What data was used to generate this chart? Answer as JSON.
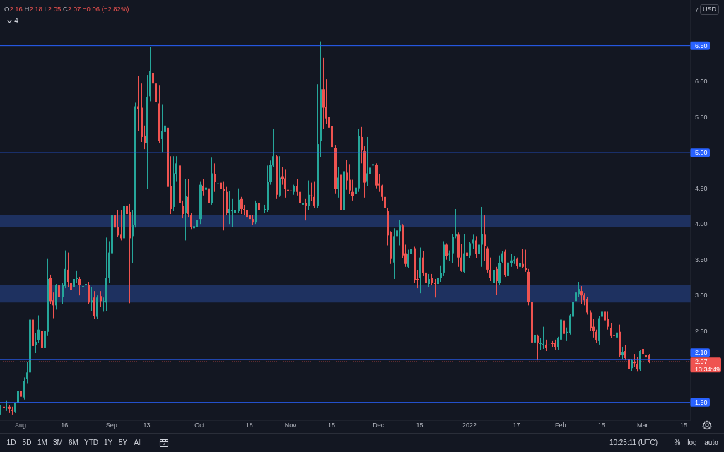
{
  "chart_data": {
    "type": "candlestick",
    "title": "O2.16 H2.18 L2.05 C2.07 −0.06 (−2.82%)",
    "ylabel": "USD",
    "x": [
      "2021-07-25",
      "2021-07-26",
      "2021-07-27",
      "2021-07-28",
      "2021-07-29",
      "2021-07-30",
      "2021-07-31",
      "2021-08-01",
      "2021-08-02",
      "2021-08-03",
      "2021-08-04",
      "2021-08-05",
      "2021-08-06",
      "2021-08-07",
      "2021-08-08",
      "2021-08-09",
      "2021-08-10",
      "2021-08-11",
      "2021-08-12",
      "2021-08-13",
      "2021-08-14",
      "2021-08-15",
      "2021-08-16",
      "2021-08-17",
      "2021-08-18",
      "2021-08-19",
      "2021-08-20",
      "2021-08-21",
      "2021-08-22",
      "2021-08-23",
      "2021-08-24",
      "2021-08-25",
      "2021-08-26",
      "2021-08-27",
      "2021-08-28",
      "2021-08-29",
      "2021-08-30",
      "2021-08-31",
      "2021-09-01",
      "2021-09-02",
      "2021-09-03",
      "2021-09-04",
      "2021-09-05",
      "2021-09-06",
      "2021-09-07",
      "2021-09-08",
      "2021-09-09",
      "2021-09-10",
      "2021-09-11",
      "2021-09-12",
      "2021-09-13",
      "2021-09-14",
      "2021-09-15",
      "2021-09-16",
      "2021-09-17",
      "2021-09-18",
      "2021-09-19",
      "2021-09-20",
      "2021-09-21",
      "2021-09-22",
      "2021-09-23",
      "2021-09-24",
      "2021-09-25",
      "2021-09-26",
      "2021-09-27",
      "2021-09-28",
      "2021-09-29",
      "2021-09-30",
      "2021-10-01",
      "2021-10-02",
      "2021-10-03",
      "2021-10-04",
      "2021-10-05",
      "2021-10-06",
      "2021-10-07",
      "2021-10-08",
      "2021-10-09",
      "2021-10-10",
      "2021-10-11",
      "2021-10-12",
      "2021-10-13",
      "2021-10-14",
      "2021-10-15",
      "2021-10-16",
      "2021-10-17",
      "2021-10-18",
      "2021-10-19",
      "2021-10-20",
      "2021-10-21",
      "2021-10-22",
      "2021-10-23",
      "2021-10-24",
      "2021-10-25",
      "2021-10-26",
      "2021-10-27",
      "2021-10-28",
      "2021-10-29",
      "2021-10-30",
      "2021-10-31",
      "2021-11-01",
      "2021-11-02",
      "2021-11-03",
      "2021-11-04",
      "2021-11-05",
      "2021-11-06",
      "2021-11-07",
      "2021-11-08",
      "2021-11-09",
      "2021-11-10",
      "2021-11-11",
      "2021-11-12",
      "2021-11-13",
      "2021-11-14",
      "2021-11-15",
      "2021-11-16",
      "2021-11-17",
      "2021-11-18",
      "2021-11-19",
      "2021-11-20",
      "2021-11-21",
      "2021-11-22",
      "2021-11-23",
      "2021-11-24",
      "2021-11-25",
      "2021-11-26",
      "2021-11-27",
      "2021-11-28",
      "2021-11-29",
      "2021-11-30",
      "2021-12-01",
      "2021-12-02",
      "2021-12-03",
      "2021-12-04",
      "2021-12-05",
      "2021-12-06",
      "2021-12-07",
      "2021-12-08",
      "2021-12-09",
      "2021-12-10",
      "2021-12-11",
      "2021-12-12",
      "2021-12-13",
      "2021-12-14",
      "2021-12-15",
      "2021-12-16",
      "2021-12-17",
      "2021-12-18",
      "2021-12-19",
      "2021-12-20",
      "2021-12-21",
      "2021-12-22",
      "2021-12-23",
      "2021-12-24",
      "2021-12-25",
      "2021-12-26",
      "2021-12-27",
      "2021-12-28",
      "2021-12-29",
      "2021-12-30",
      "2021-12-31",
      "2022-01-01",
      "2022-01-02",
      "2022-01-03",
      "2022-01-04",
      "2022-01-05",
      "2022-01-06",
      "2022-01-07",
      "2022-01-08",
      "2022-01-09",
      "2022-01-10",
      "2022-01-11",
      "2022-01-12",
      "2022-01-13",
      "2022-01-14",
      "2022-01-15",
      "2022-01-16",
      "2022-01-17",
      "2022-01-18",
      "2022-01-19",
      "2022-01-20",
      "2022-01-21",
      "2022-01-22",
      "2022-01-23",
      "2022-01-24",
      "2022-01-25",
      "2022-01-26",
      "2022-01-27",
      "2022-01-28",
      "2022-01-29",
      "2022-01-30",
      "2022-01-31",
      "2022-02-01",
      "2022-02-02",
      "2022-02-03",
      "2022-02-04",
      "2022-02-05",
      "2022-02-06",
      "2022-02-07",
      "2022-02-08",
      "2022-02-09",
      "2022-02-10",
      "2022-02-11",
      "2022-02-12",
      "2022-02-13",
      "2022-02-14",
      "2022-02-15",
      "2022-02-16",
      "2022-02-17",
      "2022-02-18",
      "2022-02-19",
      "2022-02-20",
      "2022-02-21",
      "2022-02-22",
      "2022-02-23",
      "2022-02-24",
      "2022-02-25",
      "2022-02-26",
      "2022-02-27",
      "2022-02-28",
      "2022-03-01",
      "2022-03-02",
      "2022-03-03"
    ],
    "ohlc": [
      [
        1.35,
        1.46,
        1.33,
        1.44
      ],
      [
        1.44,
        1.55,
        1.36,
        1.42
      ],
      [
        1.42,
        1.52,
        1.38,
        1.43
      ],
      [
        1.44,
        1.46,
        1.35,
        1.41
      ],
      [
        1.4,
        1.44,
        1.33,
        1.38
      ],
      [
        1.37,
        1.5,
        1.35,
        1.49
      ],
      [
        1.49,
        1.75,
        1.47,
        1.66
      ],
      [
        1.66,
        1.68,
        1.55,
        1.58
      ],
      [
        1.57,
        1.85,
        1.54,
        1.8
      ],
      [
        1.83,
        2.07,
        1.76,
        1.92
      ],
      [
        1.92,
        2.8,
        1.9,
        2.66
      ],
      [
        2.66,
        2.71,
        2.11,
        2.29
      ],
      [
        2.3,
        2.47,
        2.19,
        2.35
      ],
      [
        2.37,
        2.72,
        2.33,
        2.52
      ],
      [
        2.5,
        2.55,
        2.13,
        2.26
      ],
      [
        2.26,
        2.53,
        2.14,
        2.5
      ],
      [
        2.49,
        3.51,
        2.43,
        3.23
      ],
      [
        3.24,
        3.29,
        2.88,
        2.92
      ],
      [
        2.93,
        3.04,
        2.68,
        2.86
      ],
      [
        2.86,
        3.16,
        2.8,
        3.14
      ],
      [
        3.14,
        3.18,
        2.9,
        2.98
      ],
      [
        2.98,
        3.17,
        2.88,
        3.14
      ],
      [
        3.13,
        3.63,
        3.1,
        3.37
      ],
      [
        3.36,
        3.6,
        3.12,
        3.19
      ],
      [
        3.18,
        3.32,
        3.02,
        3.08
      ],
      [
        3.12,
        3.35,
        3.05,
        3.23
      ],
      [
        3.23,
        3.34,
        3.17,
        3.25
      ],
      [
        3.23,
        3.26,
        3.0,
        3.15
      ],
      [
        3.12,
        3.22,
        3.06,
        3.13
      ],
      [
        3.14,
        3.34,
        3.1,
        3.16
      ],
      [
        3.15,
        3.19,
        2.88,
        2.9
      ],
      [
        2.9,
        3.12,
        2.78,
        2.93
      ],
      [
        2.97,
        3.06,
        2.67,
        2.71
      ],
      [
        2.7,
        3.0,
        2.67,
        2.97
      ],
      [
        2.99,
        3.06,
        2.84,
        2.92
      ],
      [
        2.91,
        2.97,
        2.77,
        2.92
      ],
      [
        2.9,
        3.81,
        2.78,
        3.24
      ],
      [
        3.25,
        3.76,
        3.18,
        3.6
      ],
      [
        3.59,
        4.68,
        3.55,
        4.12
      ],
      [
        4.12,
        4.27,
        3.85,
        3.95
      ],
      [
        3.96,
        4.2,
        3.82,
        3.84
      ],
      [
        3.85,
        4.2,
        3.77,
        3.8
      ],
      [
        3.8,
        4.44,
        3.77,
        4.25
      ],
      [
        4.26,
        4.63,
        4.0,
        4.14
      ],
      [
        4.17,
        4.28,
        2.89,
        3.8
      ],
      [
        3.83,
        4.2,
        3.45,
        3.99
      ],
      [
        3.99,
        5.7,
        3.95,
        5.65
      ],
      [
        5.65,
        6.08,
        5.3,
        5.61
      ],
      [
        5.63,
        5.97,
        5.15,
        5.22
      ],
      [
        5.24,
        5.38,
        5.05,
        5.14
      ],
      [
        5.13,
        6.09,
        4.49,
        5.78
      ],
      [
        5.79,
        6.48,
        5.72,
        6.15
      ],
      [
        6.12,
        6.18,
        5.6,
        5.97
      ],
      [
        5.97,
        6.0,
        5.35,
        5.71
      ],
      [
        5.69,
        5.94,
        5.13,
        5.17
      ],
      [
        5.19,
        5.68,
        5.01,
        5.3
      ],
      [
        5.29,
        5.65,
        5.1,
        5.38
      ],
      [
        5.35,
        5.38,
        4.42,
        4.52
      ],
      [
        4.53,
        4.95,
        4.14,
        4.21
      ],
      [
        4.24,
        4.95,
        4.18,
        4.71
      ],
      [
        4.7,
        4.95,
        4.6,
        4.85
      ],
      [
        4.82,
        4.84,
        4.04,
        4.29
      ],
      [
        4.26,
        4.33,
        4.08,
        4.14
      ],
      [
        4.15,
        4.63,
        3.77,
        4.39
      ],
      [
        4.38,
        4.63,
        4.1,
        4.14
      ],
      [
        4.12,
        4.15,
        3.93,
        3.96
      ],
      [
        3.94,
        4.13,
        3.91,
        3.97
      ],
      [
        3.96,
        4.13,
        3.93,
        4.06
      ],
      [
        4.07,
        4.6,
        4.0,
        4.55
      ],
      [
        4.53,
        4.63,
        4.4,
        4.46
      ],
      [
        4.48,
        4.6,
        4.4,
        4.51
      ],
      [
        4.5,
        4.52,
        4.25,
        4.29
      ],
      [
        4.29,
        4.93,
        4.27,
        4.71
      ],
      [
        4.7,
        4.85,
        4.45,
        4.59
      ],
      [
        4.56,
        4.75,
        4.47,
        4.57
      ],
      [
        4.58,
        4.63,
        4.44,
        4.49
      ],
      [
        4.49,
        4.6,
        3.91,
        4.46
      ],
      [
        4.45,
        4.52,
        4.12,
        4.16
      ],
      [
        4.15,
        4.46,
        4.0,
        4.21
      ],
      [
        4.18,
        4.35,
        3.96,
        4.19
      ],
      [
        4.16,
        4.24,
        4.03,
        4.19
      ],
      [
        4.18,
        4.5,
        4.15,
        4.34
      ],
      [
        4.35,
        4.38,
        4.14,
        4.21
      ],
      [
        4.21,
        4.27,
        4.12,
        4.19
      ],
      [
        4.19,
        4.23,
        4.06,
        4.1
      ],
      [
        4.12,
        4.15,
        4.03,
        4.07
      ],
      [
        4.07,
        4.13,
        3.99,
        4.02
      ],
      [
        4.02,
        4.33,
        4.0,
        4.29
      ],
      [
        4.29,
        4.35,
        4.16,
        4.19
      ],
      [
        4.19,
        4.32,
        4.14,
        4.2
      ],
      [
        4.19,
        4.27,
        4.15,
        4.21
      ],
      [
        4.19,
        4.82,
        4.17,
        4.59
      ],
      [
        4.59,
        4.89,
        4.55,
        4.83
      ],
      [
        4.82,
        5.33,
        4.8,
        4.95
      ],
      [
        4.95,
        4.97,
        4.35,
        4.41
      ],
      [
        4.4,
        4.95,
        4.38,
        4.65
      ],
      [
        4.67,
        4.8,
        4.55,
        4.63
      ],
      [
        4.64,
        4.76,
        4.37,
        4.49
      ],
      [
        4.48,
        4.5,
        4.38,
        4.46
      ],
      [
        4.47,
        4.64,
        4.32,
        4.46
      ],
      [
        4.45,
        4.55,
        4.41,
        4.53
      ],
      [
        4.53,
        4.63,
        4.4,
        4.45
      ],
      [
        4.45,
        4.48,
        4.24,
        4.29
      ],
      [
        4.27,
        4.34,
        4.25,
        4.29
      ],
      [
        4.29,
        4.35,
        4.05,
        4.26
      ],
      [
        4.25,
        4.61,
        4.2,
        4.41
      ],
      [
        4.4,
        4.58,
        4.32,
        4.39
      ],
      [
        4.38,
        4.6,
        4.23,
        4.26
      ],
      [
        4.26,
        5.96,
        4.22,
        5.12
      ],
      [
        5.16,
        6.56,
        4.94,
        5.89
      ],
      [
        5.89,
        6.33,
        5.33,
        5.63
      ],
      [
        5.64,
        6.03,
        5.4,
        5.48
      ],
      [
        5.5,
        5.64,
        5.3,
        5.35
      ],
      [
        5.37,
        5.65,
        5.01,
        5.08
      ],
      [
        5.07,
        5.1,
        4.43,
        4.49
      ],
      [
        4.49,
        4.8,
        4.37,
        4.65
      ],
      [
        4.69,
        4.77,
        4.11,
        4.2
      ],
      [
        4.2,
        4.9,
        4.15,
        4.74
      ],
      [
        4.72,
        4.9,
        4.48,
        4.61
      ],
      [
        4.62,
        4.84,
        4.42,
        4.47
      ],
      [
        4.45,
        4.62,
        4.33,
        4.39
      ],
      [
        4.42,
        4.68,
        4.38,
        4.51
      ],
      [
        4.5,
        5.33,
        4.45,
        5.23
      ],
      [
        5.22,
        5.36,
        4.85,
        5.03
      ],
      [
        5.02,
        5.09,
        4.37,
        4.58
      ],
      [
        4.6,
        5.22,
        4.53,
        4.71
      ],
      [
        4.7,
        4.81,
        4.4,
        4.79
      ],
      [
        4.82,
        4.93,
        4.68,
        4.84
      ],
      [
        4.83,
        4.85,
        4.5,
        4.54
      ],
      [
        4.57,
        4.7,
        4.45,
        4.54
      ],
      [
        4.54,
        4.55,
        4.33,
        4.38
      ],
      [
        4.38,
        4.43,
        4.13,
        4.23
      ],
      [
        4.18,
        4.23,
        3.7,
        3.84
      ],
      [
        3.89,
        3.9,
        3.44,
        3.51
      ],
      [
        3.46,
        3.94,
        3.23,
        3.83
      ],
      [
        3.83,
        4.16,
        3.6,
        3.91
      ],
      [
        3.9,
        4.06,
        3.7,
        3.98
      ],
      [
        3.98,
        4.0,
        3.52,
        3.56
      ],
      [
        3.59,
        3.71,
        3.4,
        3.44
      ],
      [
        3.4,
        3.64,
        3.38,
        3.58
      ],
      [
        3.58,
        3.72,
        3.55,
        3.65
      ],
      [
        3.66,
        3.68,
        3.18,
        3.22
      ],
      [
        3.23,
        3.35,
        3.1,
        3.21
      ],
      [
        3.25,
        3.67,
        3.03,
        3.53
      ],
      [
        3.53,
        3.62,
        3.27,
        3.31
      ],
      [
        3.32,
        3.36,
        3.12,
        3.18
      ],
      [
        3.16,
        3.3,
        3.12,
        3.23
      ],
      [
        3.24,
        3.3,
        3.14,
        3.18
      ],
      [
        3.18,
        3.23,
        2.97,
        3.16
      ],
      [
        3.16,
        3.26,
        3.1,
        3.24
      ],
      [
        3.24,
        3.42,
        3.19,
        3.31
      ],
      [
        3.32,
        3.76,
        3.27,
        3.71
      ],
      [
        3.71,
        3.73,
        3.5,
        3.55
      ],
      [
        3.57,
        3.63,
        3.48,
        3.59
      ],
      [
        3.59,
        3.86,
        3.45,
        3.82
      ],
      [
        3.83,
        4.21,
        3.8,
        3.86
      ],
      [
        3.85,
        3.88,
        3.4,
        3.53
      ],
      [
        3.53,
        3.72,
        3.33,
        3.34
      ],
      [
        3.33,
        3.86,
        3.31,
        3.59
      ],
      [
        3.6,
        3.71,
        3.5,
        3.55
      ],
      [
        3.56,
        3.75,
        3.52,
        3.73
      ],
      [
        3.73,
        3.85,
        3.65,
        3.78
      ],
      [
        3.77,
        3.83,
        3.52,
        3.58
      ],
      [
        3.58,
        3.91,
        3.45,
        3.71
      ],
      [
        3.71,
        4.24,
        3.4,
        3.86
      ],
      [
        3.85,
        4.12,
        3.48,
        3.69
      ],
      [
        3.66,
        3.68,
        3.32,
        3.36
      ],
      [
        3.35,
        3.53,
        3.2,
        3.24
      ],
      [
        3.18,
        3.48,
        3.15,
        3.35
      ],
      [
        3.37,
        3.4,
        3.01,
        3.2
      ],
      [
        3.18,
        3.56,
        3.15,
        3.45
      ],
      [
        3.47,
        3.62,
        3.45,
        3.59
      ],
      [
        3.61,
        3.64,
        3.26,
        3.28
      ],
      [
        3.27,
        3.55,
        3.25,
        3.46
      ],
      [
        3.45,
        3.58,
        3.4,
        3.49
      ],
      [
        3.49,
        3.55,
        3.44,
        3.5
      ],
      [
        3.51,
        3.53,
        3.37,
        3.41
      ],
      [
        3.4,
        3.58,
        3.38,
        3.45
      ],
      [
        3.44,
        3.65,
        3.38,
        3.4
      ],
      [
        3.38,
        3.64,
        3.33,
        3.35
      ],
      [
        3.33,
        3.37,
        2.86,
        2.91
      ],
      [
        2.91,
        2.97,
        2.21,
        2.34
      ],
      [
        2.34,
        2.56,
        2.26,
        2.44
      ],
      [
        2.43,
        2.45,
        2.09,
        2.34
      ],
      [
        2.32,
        2.4,
        2.23,
        2.33
      ],
      [
        2.31,
        2.56,
        2.25,
        2.32
      ],
      [
        2.31,
        2.38,
        2.22,
        2.26
      ],
      [
        2.3,
        2.38,
        2.25,
        2.31
      ],
      [
        2.33,
        2.36,
        2.27,
        2.32
      ],
      [
        2.33,
        2.38,
        2.24,
        2.27
      ],
      [
        2.27,
        2.42,
        2.24,
        2.4
      ],
      [
        2.38,
        2.69,
        2.33,
        2.66
      ],
      [
        2.65,
        2.78,
        2.42,
        2.46
      ],
      [
        2.47,
        2.55,
        2.36,
        2.49
      ],
      [
        2.47,
        2.74,
        2.45,
        2.72
      ],
      [
        2.7,
        2.95,
        2.68,
        2.91
      ],
      [
        2.92,
        3.16,
        2.9,
        3.04
      ],
      [
        3.02,
        3.19,
        2.98,
        3.09
      ],
      [
        3.06,
        3.13,
        2.88,
        3.0
      ],
      [
        3.0,
        3.03,
        2.86,
        2.93
      ],
      [
        2.95,
        2.98,
        2.73,
        2.76
      ],
      [
        2.76,
        2.79,
        2.5,
        2.54
      ],
      [
        2.56,
        2.67,
        2.41,
        2.5
      ],
      [
        2.49,
        2.52,
        2.33,
        2.37
      ],
      [
        2.36,
        2.71,
        2.31,
        2.68
      ],
      [
        2.7,
        3.0,
        2.62,
        2.77
      ],
      [
        2.77,
        2.89,
        2.6,
        2.65
      ],
      [
        2.67,
        2.77,
        2.52,
        2.56
      ],
      [
        2.54,
        2.61,
        2.4,
        2.43
      ],
      [
        2.44,
        2.51,
        2.36,
        2.43
      ],
      [
        2.41,
        2.59,
        2.26,
        2.48
      ],
      [
        2.49,
        2.59,
        2.14,
        2.16
      ],
      [
        2.16,
        2.28,
        2.1,
        2.2
      ],
      [
        2.22,
        2.3,
        2.09,
        2.12
      ],
      [
        2.11,
        2.14,
        1.76,
        1.97
      ],
      [
        1.98,
        2.11,
        1.94,
        2.09
      ],
      [
        2.07,
        2.18,
        2.0,
        2.05
      ],
      [
        2.04,
        2.14,
        1.93,
        1.97
      ],
      [
        1.96,
        2.24,
        1.94,
        2.22
      ],
      [
        2.25,
        2.27,
        2.16,
        2.18
      ],
      [
        2.17,
        2.21,
        2.04,
        2.13
      ],
      [
        2.16,
        2.18,
        2.05,
        2.07
      ]
    ],
    "colors": [
      "#26a69a",
      "#ef5350",
      "#26a69a",
      "#ef5350",
      "#ef5350",
      "#26a69a",
      "#26a69a",
      "#ef5350",
      "#26a69a",
      "#26a69a",
      "#26a69a",
      "#ef5350",
      "#26a69a",
      "#26a69a",
      "#ef5350",
      "#26a69a",
      "#26a69a",
      "#ef5350",
      "#ef5350",
      "#26a69a",
      "#ef5350",
      "#26a69a",
      "#26a69a",
      "#ef5350",
      "#ef5350",
      "#26a69a",
      "#26a69a",
      "#ef5350",
      "#26a69a",
      "#26a69a",
      "#ef5350",
      "#26a69a",
      "#ef5350",
      "#26a69a",
      "#ef5350",
      "#26a69a",
      "#26a69a",
      "#26a69a",
      "#26a69a",
      "#ef5350",
      "#ef5350",
      "#ef5350",
      "#26a69a",
      "#ef5350",
      "#ef5350",
      "#26a69a",
      "#26a69a",
      "#ef5350",
      "#ef5350",
      "#ef5350",
      "#26a69a",
      "#26a69a",
      "#ef5350",
      "#ef5350",
      "#ef5350",
      "#26a69a",
      "#26a69a",
      "#ef5350",
      "#ef5350",
      "#26a69a",
      "#26a69a",
      "#ef5350",
      "#ef5350",
      "#26a69a",
      "#ef5350",
      "#ef5350",
      "#26a69a",
      "#26a69a",
      "#26a69a",
      "#ef5350",
      "#26a69a",
      "#ef5350",
      "#26a69a",
      "#ef5350",
      "#26a69a",
      "#ef5350",
      "#ef5350",
      "#ef5350",
      "#26a69a",
      "#26a69a",
      "#26a69a",
      "#26a69a",
      "#ef5350",
      "#ef5350",
      "#ef5350",
      "#ef5350",
      "#ef5350",
      "#26a69a",
      "#ef5350",
      "#26a69a",
      "#26a69a",
      "#26a69a",
      "#26a69a",
      "#26a69a",
      "#ef5350",
      "#26a69a",
      "#ef5350",
      "#ef5350",
      "#ef5350",
      "#ef5350",
      "#26a69a",
      "#ef5350",
      "#ef5350",
      "#26a69a",
      "#ef5350",
      "#26a69a",
      "#ef5350",
      "#ef5350",
      "#26a69a",
      "#26a69a",
      "#ef5350",
      "#ef5350",
      "#ef5350",
      "#ef5350",
      "#ef5350",
      "#26a69a",
      "#ef5350",
      "#26a69a",
      "#ef5350",
      "#ef5350",
      "#ef5350",
      "#26a69a",
      "#26a69a",
      "#ef5350",
      "#ef5350",
      "#26a69a",
      "#26a69a",
      "#26a69a",
      "#ef5350",
      "#ef5350",
      "#ef5350",
      "#ef5350",
      "#ef5350",
      "#ef5350",
      "#26a69a",
      "#26a69a",
      "#26a69a",
      "#ef5350",
      "#ef5350",
      "#26a69a",
      "#26a69a",
      "#ef5350",
      "#ef5350",
      "#26a69a",
      "#ef5350",
      "#ef5350",
      "#26a69a",
      "#ef5350",
      "#ef5350",
      "#26a69a",
      "#26a69a",
      "#26a69a",
      "#ef5350",
      "#26a69a",
      "#26a69a",
      "#26a69a",
      "#ef5350",
      "#ef5350",
      "#26a69a",
      "#ef5350",
      "#26a69a",
      "#26a69a",
      "#ef5350",
      "#26a69a",
      "#26a69a",
      "#ef5350",
      "#ef5350",
      "#ef5350",
      "#26a69a",
      "#ef5350",
      "#26a69a",
      "#26a69a",
      "#ef5350",
      "#26a69a",
      "#26a69a",
      "#26a69a",
      "#ef5350",
      "#26a69a",
      "#ef5350",
      "#ef5350",
      "#ef5350",
      "#ef5350",
      "#26a69a",
      "#ef5350",
      "#26a69a",
      "#26a69a",
      "#ef5350",
      "#26a69a",
      "#ef5350",
      "#ef5350",
      "#26a69a",
      "#26a69a",
      "#ef5350",
      "#26a69a",
      "#26a69a",
      "#26a69a",
      "#26a69a",
      "#26a69a",
      "#ef5350",
      "#ef5350",
      "#ef5350",
      "#ef5350",
      "#ef5350",
      "#ef5350",
      "#26a69a",
      "#26a69a",
      "#ef5350",
      "#ef5350",
      "#ef5350",
      "#ef5350",
      "#26a69a",
      "#ef5350",
      "#26a69a",
      "#ef5350",
      "#ef5350",
      "#26a69a",
      "#ef5350",
      "#ef5350",
      "#26a69a",
      "#ef5350",
      "#ef5350",
      "#ef5350"
    ],
    "xlim": [
      "2021-07-25T00:00",
      "2022-03-17T10:00"
    ],
    "xticks": [
      {
        "value": "2021-08-01",
        "label": "Aug"
      },
      {
        "value": "2021-08-16",
        "label": "16"
      },
      {
        "value": "2021-09-01",
        "label": "Sep"
      },
      {
        "value": "2021-09-13",
        "label": "13"
      },
      {
        "value": "2021-10-01",
        "label": "Oct"
      },
      {
        "value": "2021-10-18",
        "label": "18"
      },
      {
        "value": "2021-11-01",
        "label": "Nov"
      },
      {
        "value": "2021-11-15",
        "label": "15"
      },
      {
        "value": "2021-12-01",
        "label": "Dec"
      },
      {
        "value": "2021-12-15",
        "label": "15"
      },
      {
        "value": "2022-01-01",
        "label": "2022"
      },
      {
        "value": "2022-01-17",
        "label": "17"
      },
      {
        "value": "2022-02-01",
        "label": "Feb"
      },
      {
        "value": "2022-02-15",
        "label": "15"
      },
      {
        "value": "2022-03-01",
        "label": "Mar"
      },
      {
        "value": "2022-03-15",
        "label": "15"
      }
    ],
    "ylim": [
      1.25,
      7.14
    ],
    "yticks": [
      {
        "value": 2.5,
        "label": "2.50"
      },
      {
        "value": 3,
        "label": "3.00"
      },
      {
        "value": 3.5,
        "label": "3.50"
      },
      {
        "value": 4,
        "label": "4.00"
      },
      {
        "value": 4.5,
        "label": "4.50"
      },
      {
        "value": 5.5,
        "label": "5.50"
      },
      {
        "value": 6,
        "label": "6.00"
      },
      {
        "value": 7,
        "label": "7"
      }
    ],
    "ref_lines": [
      {
        "axis": "y",
        "value": 6.5,
        "label": "6.50",
        "color": "#2962ff"
      },
      {
        "axis": "y",
        "value": 5,
        "label": "5.00",
        "color": "#2962ff"
      },
      {
        "axis": "y",
        "value": 2.1,
        "label": "2.10",
        "color": "#2962ff"
      },
      {
        "axis": "y",
        "value": 1.5,
        "label": "1.50",
        "color": "#2962ff"
      },
      {
        "axis": "y",
        "value": 2.07,
        "label": "2.07",
        "color": "#ef5350",
        "line_style": "dotted"
      }
    ],
    "bands": [
      {
        "axis": "y",
        "from": 3.96,
        "to": 4.12,
        "color": "#1e3160"
      },
      {
        "axis": "y",
        "from": 2.9,
        "to": 3.14,
        "color": "#1e3160"
      }
    ],
    "annotations": [
      "13:34:49",
      "4",
      "1D",
      "5D",
      "1M",
      "3M",
      "6M",
      "YTD",
      "1Y",
      "5Y",
      "All",
      "10:25:11 (UTC)",
      "%",
      "log",
      "auto"
    ]
  }
}
